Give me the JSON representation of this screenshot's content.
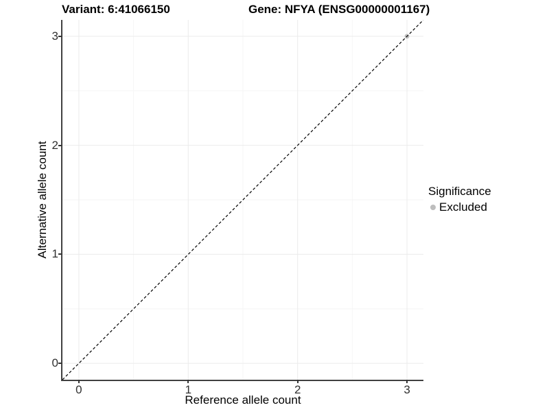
{
  "header": {
    "variant_title": "Variant: 6:41066150",
    "gene_title": "Gene: NFYA (ENSG00000001167)"
  },
  "chart_data": {
    "type": "scatter",
    "title": "Variant: 6:41066150 / Gene: NFYA (ENSG00000001167)",
    "xlabel": "Reference allele count",
    "ylabel": "Alternative allele count",
    "xlim": [
      -0.15,
      3.15
    ],
    "ylim": [
      -0.15,
      3.15
    ],
    "x_ticks": [
      0,
      1,
      2,
      3
    ],
    "y_ticks": [
      0,
      1,
      2,
      3
    ],
    "grid": {
      "major": true,
      "minor": true
    },
    "reference_line": {
      "style": "dashed",
      "equation": "y = x",
      "color": "#000000"
    },
    "series": [
      {
        "name": "Excluded",
        "color": "#bdbdbd",
        "points": [
          [
            3,
            3
          ]
        ]
      }
    ],
    "legend": {
      "title": "Significance",
      "position": "right",
      "items": [
        {
          "label": "Excluded",
          "color": "#bdbdbd"
        }
      ]
    }
  },
  "colors": {
    "background": "#ffffff",
    "grid_major": "#ebebeb",
    "grid_minor": "#f6f6f6",
    "axis_line": "#404040",
    "tick_mark": "#333333",
    "tick_label": "#303030",
    "point": "#bdbdbd"
  }
}
